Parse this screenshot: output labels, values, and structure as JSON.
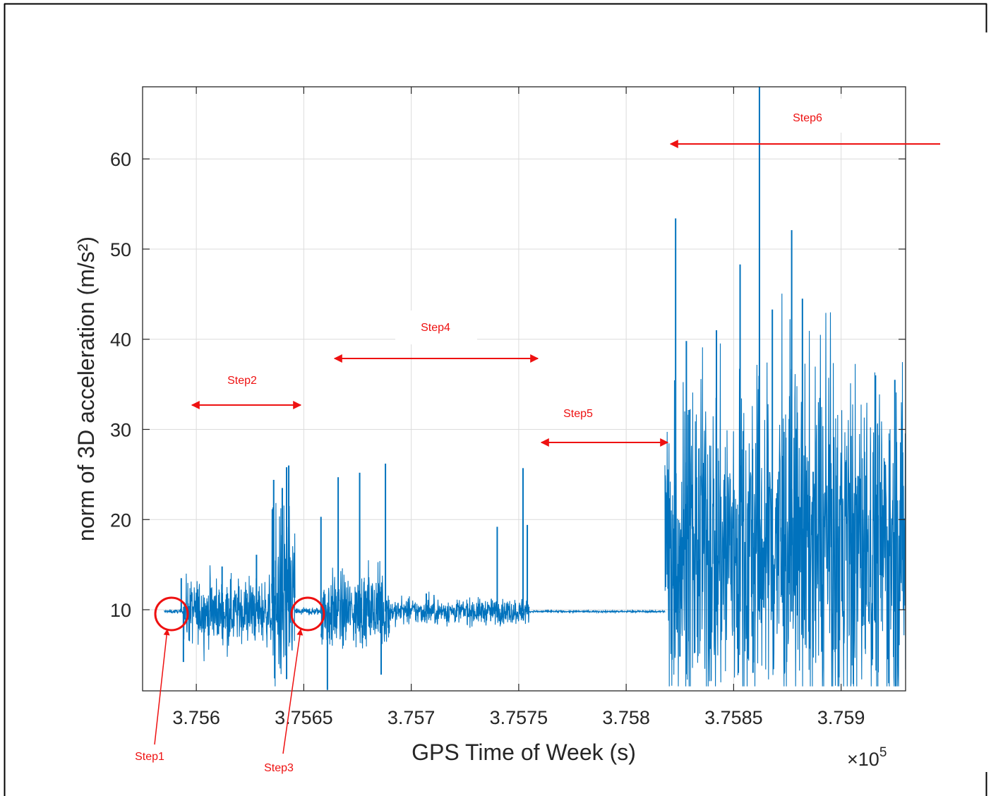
{
  "chart_data": {
    "type": "line",
    "xlabel": "GPS Time of Week (s)",
    "ylabel": "norm of 3D acceleration (m/s²)",
    "x_exponent_label": "×10",
    "x_exponent_power": "5",
    "xlim": [
      375575,
      375930
    ],
    "ylim": [
      1,
      68
    ],
    "xticks": [
      375600,
      375650,
      375700,
      375750,
      375800,
      375850,
      375900
    ],
    "xtick_labels": [
      "3.756",
      "3.7565",
      "3.757",
      "3.7575",
      "3.758",
      "3.7585",
      "3.759"
    ],
    "yticks": [
      10,
      20,
      30,
      40,
      50,
      60
    ],
    "ytick_labels": [
      "10",
      "20",
      "30",
      "40",
      "50",
      "60"
    ],
    "grid": true,
    "line_color": "#0072BD",
    "annotation_color": "#EE1111",
    "series": [
      {
        "segments": [
          {
            "x_start": 375585,
            "x_end": 375594,
            "baseline": 9.8,
            "spread": 0.15
          },
          {
            "x_start": 375594,
            "x_end": 375635,
            "baseline": 9.8,
            "spread": 2.5
          },
          {
            "x_start": 375635,
            "x_end": 375646,
            "baseline": 11,
            "spread": 7
          },
          {
            "x_start": 375646,
            "x_end": 375658,
            "baseline": 9.8,
            "spread": 0.3
          },
          {
            "x_start": 375658,
            "x_end": 375690,
            "baseline": 9.8,
            "spread": 3
          },
          {
            "x_start": 375690,
            "x_end": 375755,
            "baseline": 9.8,
            "spread": 1
          },
          {
            "x_start": 375755,
            "x_end": 375818,
            "baseline": 9.8,
            "spread": 0.08
          },
          {
            "x_start": 375818,
            "x_end": 375930,
            "baseline": 17,
            "spread": 13
          }
        ],
        "peaks": [
          {
            "x": 375593,
            "y": 13.5
          },
          {
            "x": 375594,
            "y": 4.2
          },
          {
            "x": 375612,
            "y": 14.8
          },
          {
            "x": 375628,
            "y": 16.1
          },
          {
            "x": 375636,
            "y": 24.4
          },
          {
            "x": 375640,
            "y": 23.5
          },
          {
            "x": 375642,
            "y": 25.8
          },
          {
            "x": 375643,
            "y": 26.0
          },
          {
            "x": 375642,
            "y": 2.3
          },
          {
            "x": 375658,
            "y": 20.3
          },
          {
            "x": 375661,
            "y": 1.1
          },
          {
            "x": 375666,
            "y": 24.7
          },
          {
            "x": 375676,
            "y": 25.2
          },
          {
            "x": 375688,
            "y": 26.2
          },
          {
            "x": 375686,
            "y": 2.8
          },
          {
            "x": 375707,
            "y": 11.8
          },
          {
            "x": 375740,
            "y": 19.2
          },
          {
            "x": 375752,
            "y": 25.7
          },
          {
            "x": 375754,
            "y": 19.4
          },
          {
            "x": 375823,
            "y": 53.4
          },
          {
            "x": 375825,
            "y": 4.8
          },
          {
            "x": 375828,
            "y": 39.8
          },
          {
            "x": 375842,
            "y": 41.0
          },
          {
            "x": 375853,
            "y": 48.3
          },
          {
            "x": 375859,
            "y": 3.0
          },
          {
            "x": 375862,
            "y": 68.0
          },
          {
            "x": 375868,
            "y": 43.3
          },
          {
            "x": 375877,
            "y": 52.1
          },
          {
            "x": 375882,
            "y": 44.5
          },
          {
            "x": 375887,
            "y": 25.3
          },
          {
            "x": 375899,
            "y": 2.5
          },
          {
            "x": 375916,
            "y": 36.0
          },
          {
            "x": 375925,
            "y": 35.5
          }
        ]
      }
    ],
    "annotations": [
      {
        "label": "Step1"
      },
      {
        "label": "Step2"
      },
      {
        "label": "Step3"
      },
      {
        "label": "Step4"
      },
      {
        "label": "Step5"
      },
      {
        "label": "Step6"
      }
    ]
  }
}
